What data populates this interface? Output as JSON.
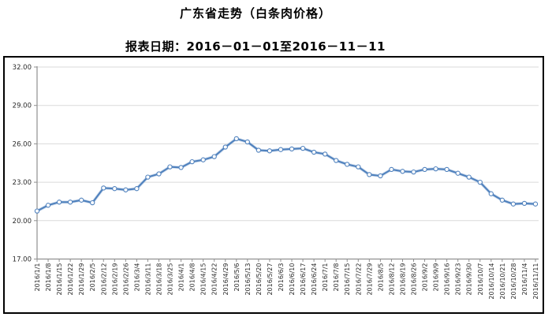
{
  "title": "广东省走势（白条肉价格）",
  "subtitle": "报表日期：2016－01－01至2016－11－11",
  "chart_data": {
    "type": "line",
    "title": "广东省走势（白条肉价格）",
    "subtitle": "报表日期：2016－01－01至2016－11－11",
    "xlabel": "",
    "ylabel": "",
    "ylim": [
      17,
      32
    ],
    "ytick_step": 3,
    "yticks": [
      "32.00",
      "29.00",
      "26.00",
      "23.00",
      "20.00",
      "17.00"
    ],
    "grid": true,
    "legend_position": "none",
    "line_color": "#4F81BD",
    "line_halo_color": "#A7C0DE",
    "marker_fill": "#FFFFFF",
    "gridline_color": "#DADADA",
    "axis_color": "#909090",
    "tick_label_color": "#2b2b2b",
    "box_border_color": "#000000",
    "categories": [
      "2016/1/1",
      "2016/1/8",
      "2016/1/15",
      "2016/1/22",
      "2016/1/29",
      "2016/2/5",
      "2016/2/12",
      "2016/2/19",
      "2016/2/26",
      "2016/3/4",
      "2016/3/11",
      "2016/3/18",
      "2016/3/25",
      "2016/4/1",
      "2016/4/8",
      "2016/4/15",
      "2016/4/22",
      "2016/4/29",
      "2016/5/6",
      "2016/5/13",
      "2016/5/20",
      "2016/5/27",
      "2016/6/3",
      "2016/6/10",
      "2016/6/17",
      "2016/6/24",
      "2016/7/1",
      "2016/7/8",
      "2016/7/15",
      "2016/7/22",
      "2016/7/29",
      "2016/8/5",
      "2016/8/12",
      "2016/8/19",
      "2016/8/26",
      "2016/9/2",
      "2016/9/9",
      "2016/9/16",
      "2016/9/23",
      "2016/9/30",
      "2016/10/7",
      "2016/10/14",
      "2016/10/21",
      "2016/10/28",
      "2016/11/4",
      "2016/11/11"
    ],
    "series": [
      {
        "name": "白条肉价格",
        "values": [
          20.75,
          21.2,
          21.45,
          21.45,
          21.6,
          21.4,
          22.55,
          22.5,
          22.4,
          22.5,
          23.4,
          23.65,
          24.2,
          24.15,
          24.6,
          24.75,
          25.0,
          25.75,
          26.4,
          26.15,
          25.5,
          25.45,
          25.55,
          25.6,
          25.65,
          25.35,
          25.2,
          24.7,
          24.4,
          24.2,
          23.6,
          23.5,
          24.0,
          23.85,
          23.8,
          24.0,
          24.05,
          24.0,
          23.7,
          23.4,
          23.0,
          22.1,
          21.6,
          21.3,
          21.35,
          21.3
        ]
      }
    ]
  }
}
